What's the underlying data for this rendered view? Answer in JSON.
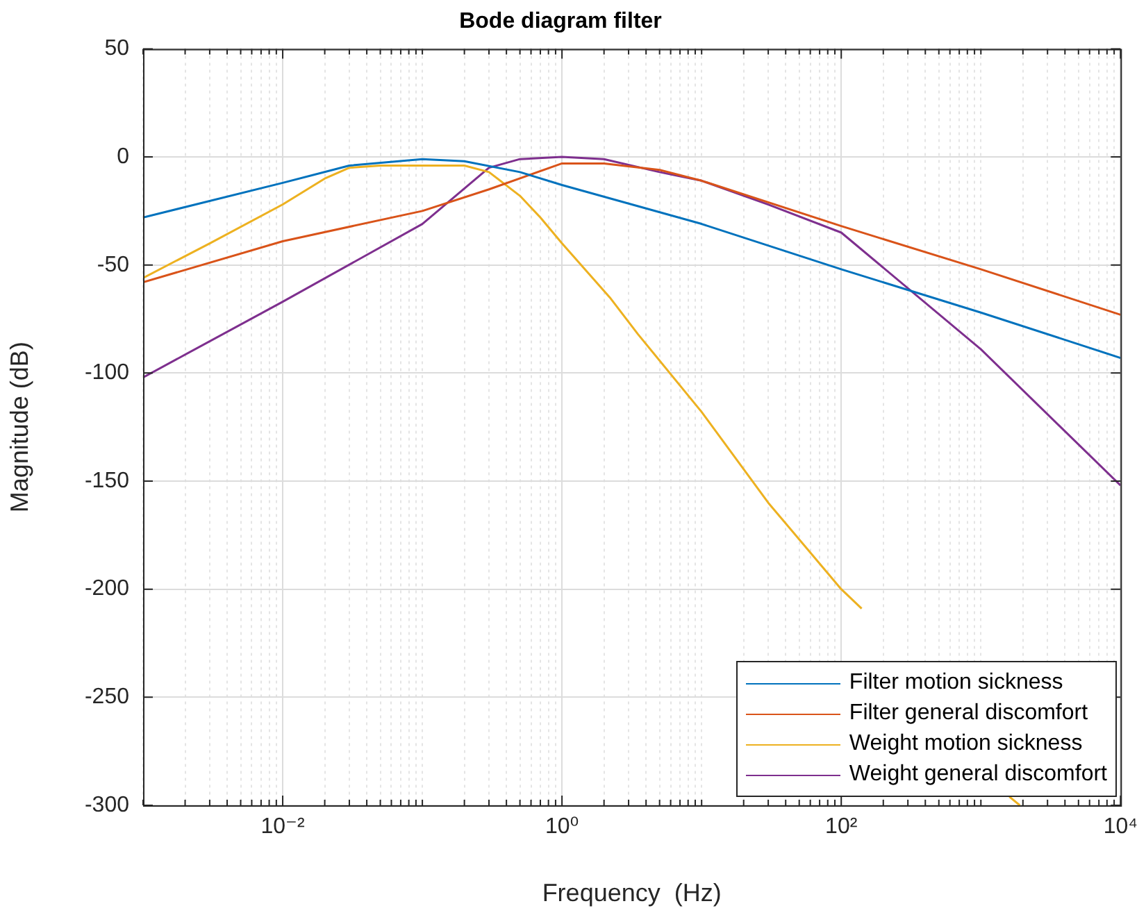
{
  "chart_data": {
    "type": "line",
    "title": "Bode diagram filter",
    "xlabel": "Frequency  (Hz)",
    "ylabel": "Magnitude (dB)",
    "log": "x",
    "grid": true,
    "legend": "bottom right",
    "marker": "none",
    "line_style": "solid",
    "xlim": [
      0.001,
      10000
    ],
    "xticks": [
      {
        "value": 0.01,
        "label": "10⁻²"
      },
      {
        "value": 1,
        "label": "10⁰"
      },
      {
        "value": 100,
        "label": "10²"
      },
      {
        "value": 10000,
        "label": "10⁴"
      }
    ],
    "ylim": [
      -300,
      50
    ],
    "yticks": [
      -300,
      -250,
      -200,
      -150,
      -100,
      -50,
      0,
      50
    ],
    "series": [
      {
        "name": "Filter motion sickness",
        "color": "#0072bd",
        "x": [
          0.001,
          0.01,
          0.03,
          0.1,
          0.2,
          0.5,
          1,
          10,
          100,
          1000,
          10000
        ],
        "values": [
          -28,
          -12,
          -4,
          -1,
          -2,
          -7,
          -13,
          -31,
          -52,
          -72,
          -93
        ]
      },
      {
        "name": "Filter general discomfort",
        "color": "#d95319",
        "x": [
          0.001,
          0.01,
          0.1,
          0.3,
          1,
          2,
          5,
          10,
          100,
          1000,
          10000
        ],
        "values": [
          -58,
          -39,
          -25,
          -15,
          -3,
          -3,
          -6,
          -11,
          -32,
          -52,
          -73
        ]
      },
      {
        "name": "Weight motion sickness",
        "color": "#edb120",
        "x": [
          0.001,
          0.003,
          0.01,
          0.02,
          0.03,
          0.05,
          0.1,
          0.2,
          0.3,
          0.5,
          0.7,
          1,
          2.2,
          3.5,
          10,
          30,
          100,
          140,
          300,
          1000,
          1600,
          1900
        ],
        "values": [
          -56,
          -40,
          -22,
          -10,
          -5,
          -4,
          -4,
          -4,
          -7,
          -18,
          -28,
          -40,
          -65,
          -82,
          -118,
          -160,
          -200,
          -209,
          null,
          null,
          -296,
          -300
        ]
      },
      {
        "name": "Weight general discomfort",
        "color": "#7e2f8e",
        "x": [
          0.001,
          0.01,
          0.1,
          0.3,
          0.5,
          1,
          2,
          5,
          10,
          30,
          100,
          1000,
          10000
        ],
        "values": [
          -102,
          -67,
          -31,
          -5,
          -1,
          0,
          -1,
          -7,
          -11,
          -22,
          -35,
          -89,
          -152
        ]
      }
    ]
  }
}
